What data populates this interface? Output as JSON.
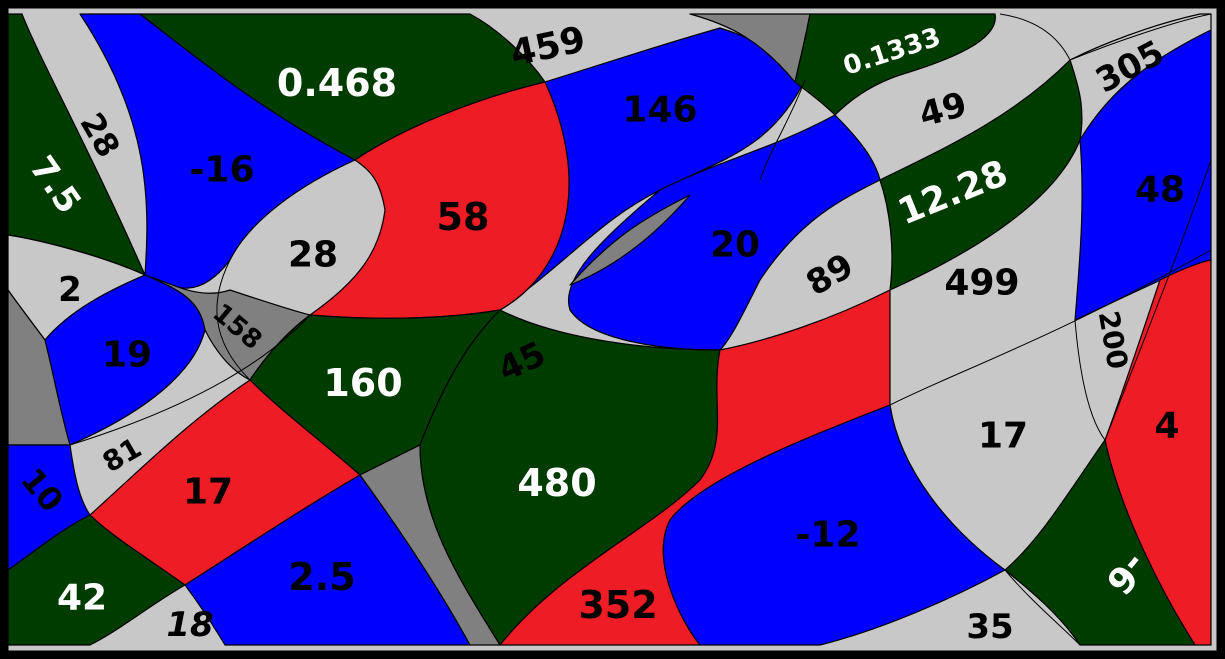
{
  "colors": {
    "frame": "#000000",
    "light_gray": "#c8c8c8",
    "mid_gray": "#808080",
    "blue": "#0000ff",
    "red": "#ee1c24",
    "dark_green": "#003c00",
    "text_dark": "#000000",
    "text_light": "#ffffff"
  },
  "regions": [
    {
      "id": "r-7_5",
      "label": "7.5",
      "fill": "dark_green"
    },
    {
      "id": "r-28a",
      "label": "28",
      "fill": "light_gray"
    },
    {
      "id": "r--16",
      "label": "-16",
      "fill": "blue"
    },
    {
      "id": "r-0_468",
      "label": "0.468",
      "fill": "dark_green"
    },
    {
      "id": "r-459",
      "label": "459",
      "fill": "light_gray"
    },
    {
      "id": "r-146",
      "label": "146",
      "fill": "blue"
    },
    {
      "id": "r-0_1333",
      "label": "0.1333",
      "fill": "dark_green"
    },
    {
      "id": "r-49",
      "label": "49",
      "fill": "light_gray"
    },
    {
      "id": "r-305",
      "label": "305",
      "fill": "light_gray"
    },
    {
      "id": "r-2",
      "label": "2",
      "fill": "light_gray"
    },
    {
      "id": "r-19",
      "label": "19",
      "fill": "blue"
    },
    {
      "id": "r-28b",
      "label": "28",
      "fill": "light_gray"
    },
    {
      "id": "r-58",
      "label": "58",
      "fill": "red"
    },
    {
      "id": "r-20",
      "label": "20",
      "fill": "blue"
    },
    {
      "id": "r-12_28",
      "label": "12.28",
      "fill": "dark_green"
    },
    {
      "id": "r-48",
      "label": "48",
      "fill": "blue"
    },
    {
      "id": "r-158",
      "label": "158",
      "fill": "light_gray"
    },
    {
      "id": "r-160",
      "label": "160",
      "fill": "dark_green"
    },
    {
      "id": "r-45",
      "label": "45",
      "fill": "light_gray"
    },
    {
      "id": "r-89",
      "label": "89",
      "fill": "light_gray"
    },
    {
      "id": "r-499",
      "label": "499",
      "fill": "light_gray"
    },
    {
      "id": "r-200",
      "label": "200",
      "fill": "light_gray"
    },
    {
      "id": "r-81",
      "label": "81",
      "fill": "light_gray"
    },
    {
      "id": "r-10",
      "label": "10",
      "fill": "blue"
    },
    {
      "id": "r-17a",
      "label": "17",
      "fill": "red"
    },
    {
      "id": "r-480",
      "label": "480",
      "fill": "dark_green"
    },
    {
      "id": "r-17b",
      "label": "17",
      "fill": "light_gray"
    },
    {
      "id": "r-4",
      "label": "4",
      "fill": "red"
    },
    {
      "id": "r--12",
      "label": "-12",
      "fill": "blue"
    },
    {
      "id": "r--6",
      "label": "-6",
      "fill": "dark_green"
    },
    {
      "id": "r-42",
      "label": "42",
      "fill": "dark_green"
    },
    {
      "id": "r-2_5",
      "label": "2.5",
      "fill": "blue"
    },
    {
      "id": "r-18",
      "label": "18",
      "fill": "light_gray"
    },
    {
      "id": "r-352",
      "label": "352",
      "fill": "red"
    },
    {
      "id": "r-35",
      "label": "35",
      "fill": "light_gray"
    }
  ]
}
